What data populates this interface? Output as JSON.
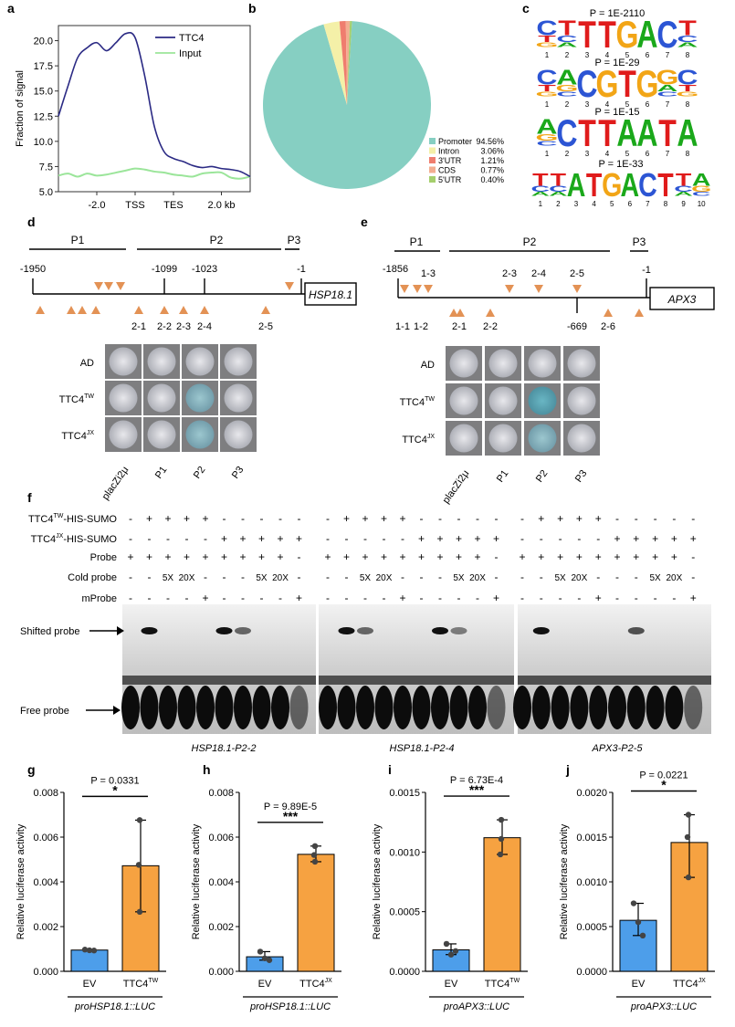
{
  "panel_labels": {
    "a": "a",
    "b": "b",
    "c": "c",
    "d": "d",
    "e": "e",
    "f": "f",
    "g": "g",
    "h": "h",
    "i": "i",
    "j": "j"
  },
  "colors": {
    "navy": "#2b2a84",
    "lightgreen": "#9be59a",
    "teal": "#86cfc2",
    "yellow": "#f4f0a8",
    "coral": "#ef7d6e",
    "salmon": "#f3ad90",
    "lime": "#a5cf6d",
    "orange": "#f6a241",
    "blue": "#4d9eea",
    "arrowhead": "#e39255"
  },
  "panel_a": {
    "ylabel": "Fraction of signal",
    "legend": [
      "TTC4",
      "Input"
    ],
    "yticks": [
      "20.0",
      "17.5",
      "15.0",
      "12.5",
      "10.0",
      "7.5",
      "5.0"
    ],
    "xticks": [
      "-2.0",
      "TSS",
      "TES",
      "2.0 kb"
    ],
    "chart_data": {
      "type": "line",
      "title": "",
      "xlabel": "",
      "ylabel": "Fraction of signal",
      "ylim": [
        5.0,
        21.5
      ],
      "x": [
        0,
        5,
        10,
        15,
        20,
        25,
        30,
        35,
        40,
        45,
        50,
        55,
        60,
        65,
        70,
        75,
        80,
        85,
        90,
        95,
        100
      ],
      "series": [
        {
          "name": "TTC4",
          "values": [
            12.5,
            15.5,
            18.3,
            19.3,
            19.8,
            19.0,
            19.8,
            20.7,
            20.3,
            16.5,
            11.5,
            9.0,
            8.3,
            8.0,
            7.6,
            7.4,
            7.5,
            7.3,
            7.2,
            7.0,
            6.5
          ]
        },
        {
          "name": "Input",
          "values": [
            6.6,
            6.8,
            6.5,
            6.8,
            6.6,
            6.7,
            6.9,
            7.1,
            7.3,
            7.2,
            7.0,
            6.9,
            6.7,
            6.6,
            6.5,
            6.8,
            6.9,
            6.9,
            6.4,
            6.3,
            6.5
          ]
        }
      ]
    }
  },
  "panel_b": {
    "legend": [
      {
        "label": "Promoter",
        "value": "94.56%"
      },
      {
        "label": "Intron",
        "value": "3.06%"
      },
      {
        "label": "3'UTR",
        "value": "1.21%"
      },
      {
        "label": "CDS",
        "value": "0.77%"
      },
      {
        "label": "5'UTR",
        "value": "0.40%"
      }
    ],
    "chart_data": {
      "type": "pie",
      "categories": [
        "Promoter",
        "Intron",
        "3'UTR",
        "CDS",
        "5'UTR"
      ],
      "values": [
        94.56,
        3.06,
        1.21,
        0.77,
        0.4
      ]
    }
  },
  "panel_c": {
    "motifs": [
      {
        "p": "P = 1E-2110",
        "seq": "CTTTGACT",
        "positions": [
          "1",
          "2",
          "3",
          "4",
          "5",
          "6",
          "7",
          "8"
        ]
      },
      {
        "p": "P = 1E-29",
        "seq": "CACGTGGC",
        "positions": [
          "1",
          "2",
          "3",
          "4",
          "5",
          "6",
          "7",
          "8"
        ]
      },
      {
        "p": "P = 1E-15",
        "seq": "ACTTAATA",
        "positions": [
          "1",
          "2",
          "3",
          "4",
          "5",
          "6",
          "7",
          "8"
        ]
      },
      {
        "p": "P = 1E-33",
        "seq": "TTATGACTTA",
        "positions": [
          "1",
          "2",
          "3",
          "4",
          "5",
          "6",
          "7",
          "8",
          "9",
          "10"
        ]
      }
    ]
  },
  "panel_d": {
    "segments": [
      "P1",
      "P2",
      "P3"
    ],
    "positions": [
      "-1950",
      "-1099",
      "-1023",
      "-1"
    ],
    "gene": "HSP18.1",
    "sites": [
      "2-1",
      "2-2",
      "2-3",
      "2-4",
      "2-5"
    ],
    "rows": [
      "AD",
      "TTC4",
      "TTC4"
    ],
    "row_sup": [
      "",
      "TW",
      "JX"
    ],
    "cols": [
      "placZi2μ",
      "P1",
      "P2",
      "P3"
    ]
  },
  "panel_e": {
    "segments": [
      "P1",
      "P2",
      "P3"
    ],
    "positions": [
      "-1856",
      "-1"
    ],
    "gene": "APX3",
    "sites_top": [
      "1-3",
      "2-3",
      "2-4",
      "2-5"
    ],
    "sites_bottom": [
      "1-1",
      "1-2",
      "2-1",
      "2-2",
      "-669",
      "2-6"
    ],
    "rows": [
      "AD",
      "TTC4",
      "TTC4"
    ],
    "row_sup": [
      "",
      "TW",
      "JX"
    ],
    "cols": [
      "placZi2μ",
      "P1",
      "P2",
      "P3"
    ]
  },
  "panel_f": {
    "row_labels": [
      "TTC4",
      "TTC4",
      "Probe",
      "Cold probe",
      "mProbe"
    ],
    "row_sup": [
      "TW",
      "JX"
    ],
    "row_suffix": "-HIS-SUMO",
    "band_labels": [
      "Shifted probe",
      "Free probe"
    ],
    "gel_titles": [
      "HSP18.1-P2-2",
      "HSP18.1-P2-4",
      "APX3-P2-5"
    ],
    "row_tw": "- + + + + - - - - -",
    "row_jx": "- - - - - + + + + +",
    "row_probe": "+ + + + + + + + + -",
    "row_cold": "- - 5X 20X - - - 5X 20X -",
    "row_mprobe": "- - - - + - - - - +"
  },
  "bar_charts": [
    {
      "label": "g",
      "p": "P = 0.0331",
      "stars": "*",
      "ylabel": "Relative luciferase activity",
      "yticks": [
        "0.008",
        "0.006",
        "0.004",
        "0.002",
        "0.000"
      ],
      "xcats": [
        "EV",
        "TTC4"
      ],
      "xsup": "TW",
      "construct": "proHSP18.1::LUC",
      "chart_data": {
        "type": "bar",
        "categories": [
          "EV",
          "TTC4TW"
        ],
        "values": [
          0.00095,
          0.00472
        ],
        "ylim": [
          0,
          0.008
        ],
        "points": [
          [
            0.00097,
            0.00094,
            0.00093
          ],
          [
            0.00676,
            0.00476,
            0.00266
          ]
        ],
        "ylabel": "Relative luciferase activity",
        "xlabel": "proHSP18.1::LUC"
      }
    },
    {
      "label": "h",
      "p": "P = 9.89E-5",
      "stars": "***",
      "ylabel": "Relative luciferase activity",
      "yticks": [
        "0.008",
        "0.006",
        "0.004",
        "0.002",
        "0.000"
      ],
      "xcats": [
        "EV",
        "TTC4"
      ],
      "xsup": "JX",
      "construct": "proHSP18.1::LUC",
      "chart_data": {
        "type": "bar",
        "categories": [
          "EV",
          "TTC4JX"
        ],
        "values": [
          0.00065,
          0.00523
        ],
        "ylim": [
          0,
          0.008
        ],
        "points": [
          [
            0.00088,
            0.00058,
            0.0005
          ],
          [
            0.0056,
            0.0052,
            0.0049
          ]
        ],
        "ylabel": "Relative luciferase activity",
        "xlabel": "proHSP18.1::LUC"
      }
    },
    {
      "label": "i",
      "p": "P = 6.73E-4",
      "stars": "***",
      "ylabel": "Relative luciferase activity",
      "yticks": [
        "0.0015",
        "0.0010",
        "0.0005",
        "0.0000"
      ],
      "xcats": [
        "EV",
        "TTC4"
      ],
      "xsup": "TW",
      "construct": "proAPX3::LUC",
      "chart_data": {
        "type": "bar",
        "categories": [
          "EV",
          "TTC4TW"
        ],
        "values": [
          0.00018,
          0.00112
        ],
        "ylim": [
          0,
          0.0015
        ],
        "points": [
          [
            0.00023,
            0.00014,
            0.00017
          ],
          [
            0.00127,
            0.00098,
            0.00111
          ]
        ],
        "ylabel": "Relative luciferase activity",
        "xlabel": "proAPX3::LUC"
      }
    },
    {
      "label": "j",
      "p": "P = 0.0221",
      "stars": "*",
      "ylabel": "Relative luciferase activity",
      "yticks": [
        "0.0020",
        "0.0015",
        "0.0010",
        "0.0005",
        "0.0000"
      ],
      "xcats": [
        "EV",
        "TTC4"
      ],
      "xsup": "JX",
      "construct": "proAPX3::LUC",
      "chart_data": {
        "type": "bar",
        "categories": [
          "EV",
          "TTC4JX"
        ],
        "values": [
          0.00057,
          0.00144
        ],
        "ylim": [
          0,
          0.002
        ],
        "points": [
          [
            0.00076,
            0.00055,
            0.0004
          ],
          [
            0.00175,
            0.0015,
            0.00105
          ]
        ],
        "ylabel": "Relative luciferase activity",
        "xlabel": "proAPX3::LUC"
      }
    }
  ]
}
